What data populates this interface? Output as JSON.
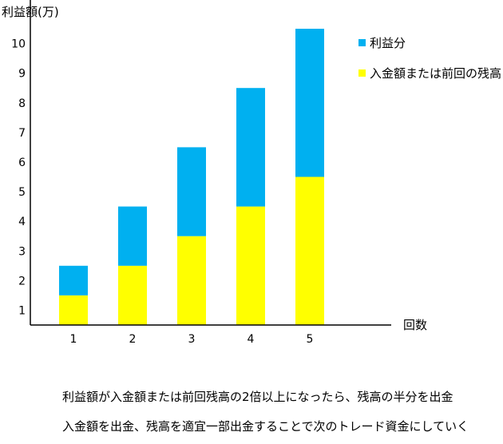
{
  "chart_data": {
    "type": "bar",
    "stacked": true,
    "ylabel": "利益額(万)",
    "xlabel": "回数",
    "categories": [
      "1",
      "2",
      "3",
      "4",
      "5"
    ],
    "yticks": [
      "1",
      "2",
      "3",
      "4",
      "5",
      "6",
      "7",
      "8",
      "9",
      "10"
    ],
    "ylim": [
      0.5,
      10.5
    ],
    "grid": false,
    "legend_position": "top-right",
    "series": [
      {
        "name": "入金額または前回の残高",
        "values": [
          1.5,
          2.5,
          3.5,
          4.5,
          5.5
        ],
        "color": "#ffff00"
      },
      {
        "name": "利益分",
        "values": [
          1,
          2,
          3,
          4,
          5
        ],
        "color": "#00b0f0"
      }
    ]
  },
  "notes": [
    "利益額が入金額または前回残高の2倍以上になったら、残高の半分を出金",
    "入金額を出金、残高を適宜一部出金することで次のトレード資金にしていく"
  ]
}
